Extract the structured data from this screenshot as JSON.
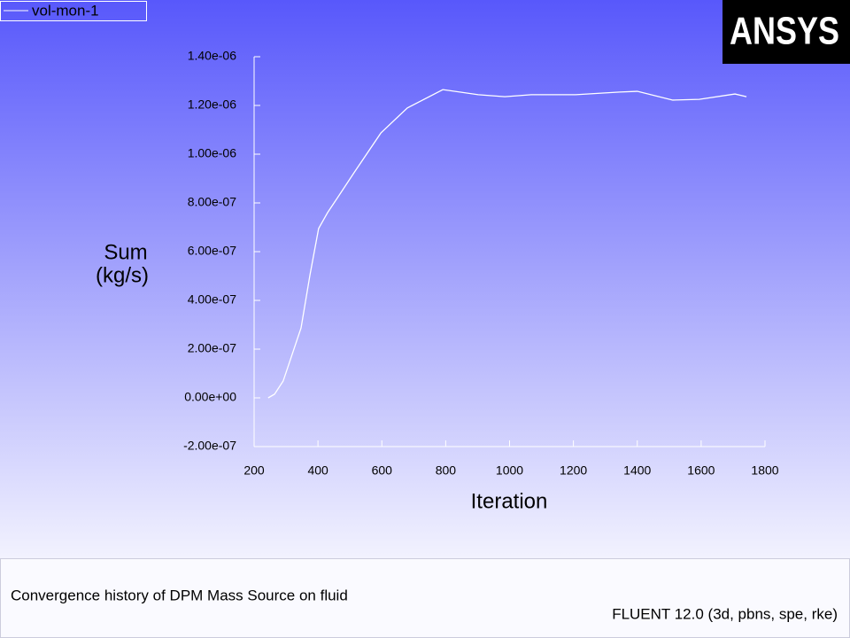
{
  "logo": "ANSYS",
  "chart_data": {
    "type": "line",
    "title": "Convergence history of DPM Mass Source on fluid",
    "annotations": [
      "FLUENT 12.0 (3d, pbns, spe, rke)"
    ],
    "xlabel": "Iteration",
    "ylabel": [
      "Sum",
      "(kg/s)"
    ],
    "x": [
      244,
      264,
      291,
      319,
      347,
      375,
      402,
      430,
      458,
      513,
      597,
      680,
      791,
      902,
      985,
      1068,
      1207,
      1345,
      1400,
      1511,
      1594,
      1706,
      1742
    ],
    "series": [
      {
        "name": "vol-mon-1",
        "color": "#ffffff",
        "values": [
          0,
          1.5e-08,
          6.9e-08,
          1.78e-07,
          2.87e-07,
          5.05e-07,
          6.95e-07,
          7.6e-07,
          8.15e-07,
          9.24e-07,
          1.087e-06,
          1.19e-06,
          1.265e-06,
          1.244e-06,
          1.236e-06,
          1.244e-06,
          1.244e-06,
          1.255e-06,
          1.258e-06,
          1.222e-06,
          1.225e-06,
          1.247e-06,
          1.236e-06
        ]
      }
    ],
    "xlim": [
      200,
      1800
    ],
    "xticks": [
      200,
      400,
      600,
      800,
      1000,
      1200,
      1400,
      1600,
      1800
    ],
    "ylim": [
      -2e-07,
      1.4e-06
    ],
    "yticks": [
      {
        "value": -2e-07,
        "label": "-2.00e-07"
      },
      {
        "value": 0,
        "label": "0.00e+00"
      },
      {
        "value": 2e-07,
        "label": "2.00e-07"
      },
      {
        "value": 4e-07,
        "label": "4.00e-07"
      },
      {
        "value": 6e-07,
        "label": "6.00e-07"
      },
      {
        "value": 8e-07,
        "label": "8.00e-07"
      },
      {
        "value": 1e-06,
        "label": "1.00e-06"
      },
      {
        "value": 1.2e-06,
        "label": "1.20e-06"
      },
      {
        "value": 1.4e-06,
        "label": "1.40e-06"
      }
    ],
    "legend": "top-left"
  }
}
